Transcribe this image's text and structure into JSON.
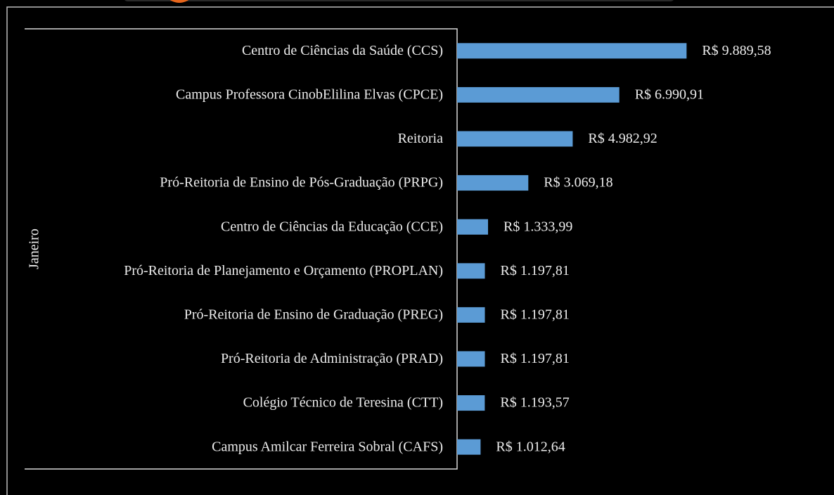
{
  "chart_data": {
    "type": "barh",
    "group": "Janeiro",
    "categories": [
      "Centro de Ciências da Saúde (CCS)",
      "Campus Professora CinobElilina Elvas (CPCE)",
      "Reitoria",
      "Pró-Reitoria de Ensino de Pós-Graduação (PRPG)",
      "Centro de Ciências da Educação (CCE)",
      "Pró-Reitoria de Planejamento e Orçamento (PROPLAN)",
      "Pró-Reitoria de Ensino de Graduação (PREG)",
      "Pró-Reitoria de Administração (PRAD)",
      "Colégio Técnico de Teresina (CTT)",
      "Campus Amilcar Ferreira Sobral (CAFS)"
    ],
    "values": [
      9889.58,
      6990.91,
      4982.92,
      3069.18,
      1333.99,
      1197.81,
      1197.81,
      1197.81,
      1193.57,
      1012.64
    ],
    "value_labels": [
      "R$ 9.889,58",
      "R$ 6.990,91",
      "R$ 4.982,92",
      "R$ 3.069,18",
      "R$ 1.333,99",
      "R$ 1.197,81",
      "R$ 1.197,81",
      "R$ 1.197,81",
      "R$ 1.193,57",
      "R$ 1.012,64"
    ],
    "color": "#5b9bd5",
    "xlim": [
      0,
      10000
    ]
  }
}
